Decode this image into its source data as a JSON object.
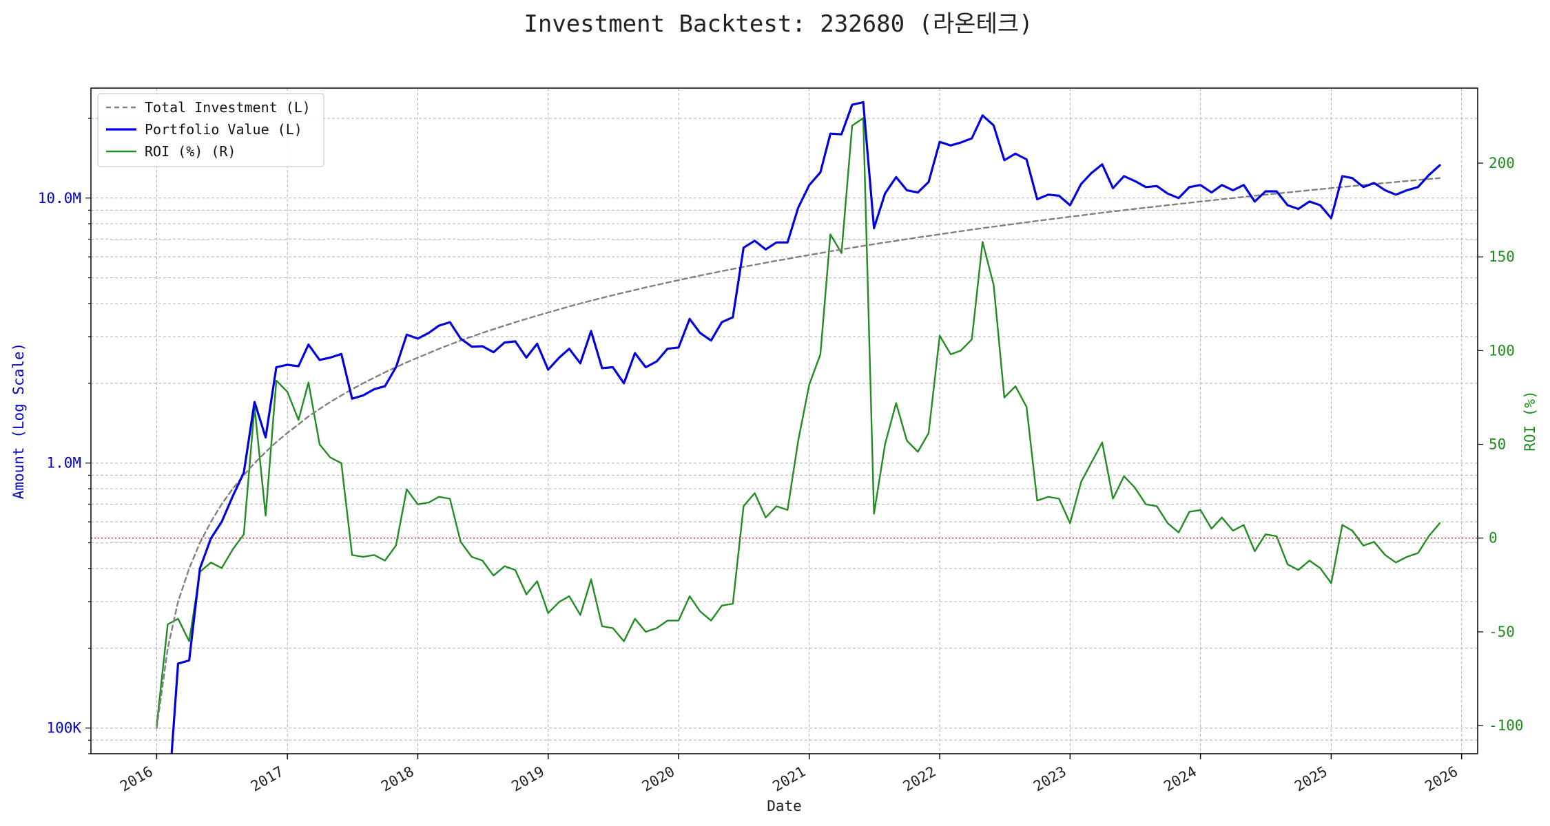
{
  "chart_data": {
    "type": "line",
    "title": "Investment Backtest: 232680 (라온테크)",
    "xlabel": "Date",
    "ylabel_left": "Amount (Log Scale)",
    "ylabel_right": "ROI (%)",
    "left_scale": "log",
    "left_ylim": [
      80000,
      26000000
    ],
    "right_ylim": [
      -115,
      240
    ],
    "xlim": [
      "2015-07-01",
      "2026-02-15"
    ],
    "x_ticks": [
      "2016",
      "2017",
      "2018",
      "2019",
      "2020",
      "2021",
      "2022",
      "2023",
      "2024",
      "2025",
      "2026"
    ],
    "left_ticks": [
      {
        "value": 100000,
        "label": "100K"
      },
      {
        "value": 1000000,
        "label": "1.0M"
      },
      {
        "value": 10000000,
        "label": "10.0M"
      }
    ],
    "right_ticks": [
      -100,
      -50,
      0,
      50,
      100,
      150,
      200
    ],
    "reference_line": {
      "axis": "right",
      "value": 0,
      "color": "#dd0000",
      "style": "dotted"
    },
    "grid": true,
    "legend_position": "top-left",
    "colors": {
      "investment": "#808080",
      "portfolio": "#0000dd",
      "roi": "#228b22",
      "left_axis": "#0000cc",
      "right_axis": "#1a8c1a"
    },
    "legend": [
      "Total Investment (L)",
      "Portfolio Value (L)",
      "ROI (%) (R)"
    ],
    "dates": [
      "2016-01",
      "2016-02",
      "2016-03",
      "2016-04",
      "2016-05",
      "2016-06",
      "2016-07",
      "2016-08",
      "2016-09",
      "2016-10",
      "2016-11",
      "2016-12",
      "2017-01",
      "2017-02",
      "2017-03",
      "2017-04",
      "2017-05",
      "2017-06",
      "2017-07",
      "2017-08",
      "2017-09",
      "2017-10",
      "2017-11",
      "2017-12",
      "2018-01",
      "2018-02",
      "2018-03",
      "2018-04",
      "2018-05",
      "2018-06",
      "2018-07",
      "2018-08",
      "2018-09",
      "2018-10",
      "2018-11",
      "2018-12",
      "2019-01",
      "2019-02",
      "2019-03",
      "2019-04",
      "2019-05",
      "2019-06",
      "2019-07",
      "2019-08",
      "2019-09",
      "2019-10",
      "2019-11",
      "2019-12",
      "2020-01",
      "2020-02",
      "2020-03",
      "2020-04",
      "2020-05",
      "2020-06",
      "2020-07",
      "2020-08",
      "2020-09",
      "2020-10",
      "2020-11",
      "2020-12",
      "2021-01",
      "2021-02",
      "2021-03",
      "2021-04",
      "2021-05",
      "2021-06",
      "2021-07",
      "2021-08",
      "2021-09",
      "2021-10",
      "2021-11",
      "2021-12",
      "2022-01",
      "2022-02",
      "2022-03",
      "2022-04",
      "2022-05",
      "2022-06",
      "2022-07",
      "2022-08",
      "2022-09",
      "2022-10",
      "2022-11",
      "2022-12",
      "2023-01",
      "2023-02",
      "2023-03",
      "2023-04",
      "2023-05",
      "2023-06",
      "2023-07",
      "2023-08",
      "2023-09",
      "2023-10",
      "2023-11",
      "2023-12",
      "2024-01",
      "2024-02",
      "2024-03",
      "2024-04",
      "2024-05",
      "2024-06",
      "2024-07",
      "2024-08",
      "2024-09",
      "2024-10",
      "2024-11",
      "2024-12",
      "2025-01",
      "2025-02",
      "2025-03",
      "2025-04",
      "2025-05",
      "2025-06",
      "2025-07",
      "2025-08",
      "2025-09",
      "2025-10",
      "2025-11"
    ],
    "series": [
      {
        "name": "Total Investment (L)",
        "values": [
          100000,
          200000,
          300000,
          400000,
          500000,
          600000,
          700000,
          800000,
          900000,
          1000000,
          1100000,
          1200000,
          1300000,
          1400000,
          1500000,
          1600000,
          1700000,
          1800000,
          1900000,
          2000000,
          2100000,
          2200000,
          2300000,
          2400000,
          2500000,
          2600000,
          2700000,
          2800000,
          2900000,
          3000000,
          3100000,
          3200000,
          3300000,
          3400000,
          3500000,
          3600000,
          3700000,
          3800000,
          3900000,
          4000000,
          4100000,
          4200000,
          4300000,
          4400000,
          4500000,
          4600000,
          4700000,
          4800000,
          4900000,
          5000000,
          5100000,
          5200000,
          5300000,
          5400000,
          5500000,
          5600000,
          5700000,
          5800000,
          5900000,
          6000000,
          6100000,
          6200000,
          6300000,
          6400000,
          6500000,
          6600000,
          6700000,
          6800000,
          6900000,
          7000000,
          7100000,
          7200000,
          7300000,
          7400000,
          7500000,
          7600000,
          7700000,
          7800000,
          7900000,
          8000000,
          8100000,
          8200000,
          8300000,
          8400000,
          8500000,
          8600000,
          8700000,
          8800000,
          8900000,
          9000000,
          9100000,
          9200000,
          9300000,
          9400000,
          9500000,
          9600000,
          9700000,
          9800000,
          9900000,
          10000000,
          10100000,
          10200000,
          10300000,
          10400000,
          10500000,
          10600000,
          10700000,
          10800000,
          10900000,
          11000000,
          11100000,
          11200000,
          11300000,
          11400000,
          11500000,
          11600000,
          11700000,
          11800000,
          11900000
        ]
      },
      {
        "name": "Portfolio Value (L)",
        "values": [
          null,
          50000,
          175000,
          180000,
          400000,
          520000,
          600000,
          750000,
          920000,
          1700000,
          1250000,
          2300000,
          2350000,
          2320000,
          2800000,
          2450000,
          2500000,
          2580000,
          1750000,
          1800000,
          1900000,
          1950000,
          2300000,
          3050000,
          2950000,
          3100000,
          3300000,
          3400000,
          2950000,
          2750000,
          2760000,
          2620000,
          2850000,
          2880000,
          2500000,
          2820000,
          2250000,
          2500000,
          2700000,
          2380000,
          3150000,
          2280000,
          2300000,
          2000000,
          2600000,
          2300000,
          2420000,
          2700000,
          2730000,
          3500000,
          3100000,
          2900000,
          3400000,
          3550000,
          6500000,
          6900000,
          6400000,
          6800000,
          6800000,
          9200000,
          11200000,
          12500000,
          17500000,
          17400000,
          22500000,
          23000000,
          7700000,
          10400000,
          12000000,
          10700000,
          10500000,
          11500000,
          16300000,
          15800000,
          16200000,
          16800000,
          20500000,
          18800000,
          13900000,
          14700000,
          14000000,
          9900000,
          10300000,
          10200000,
          9400000,
          11300000,
          12400000,
          13400000,
          10900000,
          12100000,
          11600000,
          11000000,
          11100000,
          10400000,
          10000000,
          11000000,
          11200000,
          10500000,
          11200000,
          10700000,
          11200000,
          9700000,
          10600000,
          10600000,
          9400000,
          9100000,
          9700000,
          9400000,
          8400000,
          12100000,
          11900000,
          11000000,
          11400000,
          10700000,
          10300000,
          10700000,
          11000000,
          12200000,
          13300000
        ]
      },
      {
        "name": "ROI (%) (R)",
        "values": [
          -100,
          -46,
          -43,
          -55,
          -18,
          -13,
          -16,
          -6,
          2,
          70,
          12,
          84,
          78,
          63,
          83,
          50,
          43,
          40,
          -9,
          -10,
          -9,
          -12,
          -4,
          26,
          18,
          19,
          22,
          21,
          -2,
          -10,
          -12,
          -20,
          -15,
          -17,
          -30,
          -23,
          -40,
          -34,
          -31,
          -41,
          -22,
          -47,
          -48,
          -55,
          -43,
          -50,
          -48,
          -44,
          -44,
          -31,
          -39,
          -44,
          -36,
          -35,
          17,
          24,
          11,
          17,
          15,
          52,
          82,
          98,
          162,
          152,
          220,
          224,
          13,
          50,
          72,
          52,
          46,
          56,
          108,
          98,
          100,
          106,
          158,
          135,
          75,
          81,
          70,
          20,
          22,
          21,
          8,
          30,
          40,
          51,
          21,
          33,
          27,
          18,
          17,
          8,
          3,
          14,
          15,
          5,
          11,
          4,
          7,
          -7,
          2,
          1,
          -14,
          -17,
          -12,
          -16,
          -24,
          7,
          4,
          -4,
          -2,
          -9,
          -13,
          -10,
          -8,
          1,
          8
        ]
      }
    ]
  }
}
